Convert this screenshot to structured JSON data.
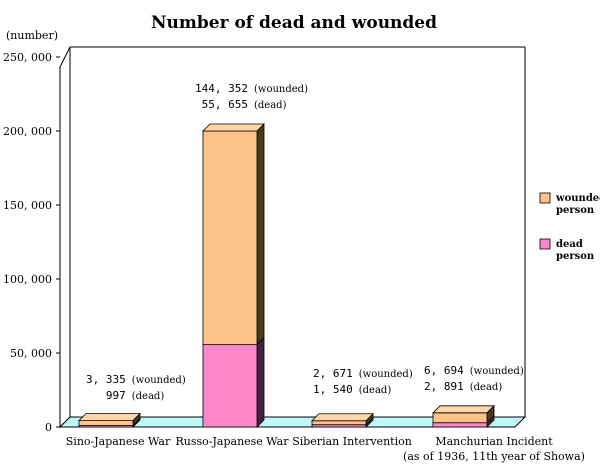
{
  "chart_data": {
    "type": "bar",
    "stacked": true,
    "three_d": true,
    "title": "Number of dead and wounded",
    "ylabel": "(number)",
    "ylim": [
      0,
      250000
    ],
    "yticks": [
      0,
      50000,
      100000,
      150000,
      200000,
      250000
    ],
    "ytick_labels": [
      "0",
      "50, 000",
      "100, 000",
      "150, 000",
      "200, 000",
      "250, 000"
    ],
    "categories": [
      "Sino-Japanese War",
      "Russo-Japanese War",
      "Siberian Intervention",
      "Manchurian Incident"
    ],
    "category_notes": [
      "",
      "",
      "",
      "(as of 1936, 11th year of Showa)"
    ],
    "series": [
      {
        "name": "dead person",
        "values": [
          997,
          55655,
          1540,
          2891
        ],
        "color": "#ff88cc",
        "side_color": "#442244",
        "top_color": "#ffaadd"
      },
      {
        "name": "wounded person",
        "values": [
          3335,
          144352,
          2671,
          6694
        ],
        "color": "#ffc38a",
        "side_color": "#4a3a1c",
        "top_color": "#ffd6a8"
      }
    ],
    "annotations": [
      {
        "wounded_value": "3, 335",
        "wounded_label": "(wounded)",
        "dead_value": "997",
        "dead_label": "(dead)"
      },
      {
        "wounded_value": "144, 352",
        "wounded_label": "(wounded)",
        "dead_value": "55, 655",
        "dead_label": "(dead)"
      },
      {
        "wounded_value": "2, 671",
        "wounded_label": "(wounded)",
        "dead_value": "1, 540",
        "dead_label": "(dead)"
      },
      {
        "wounded_value": "6, 694",
        "wounded_label": "(wounded)",
        "dead_value": "2, 891",
        "dead_label": "(dead)"
      }
    ],
    "legend": {
      "placement": "right",
      "items": [
        {
          "line1": "wounded",
          "line2": "person",
          "color": "#ffc38a"
        },
        {
          "line1": "dead",
          "line2": "person",
          "color": "#ff88cc"
        }
      ]
    },
    "floor_color": "#bff6f6",
    "grid": false
  }
}
